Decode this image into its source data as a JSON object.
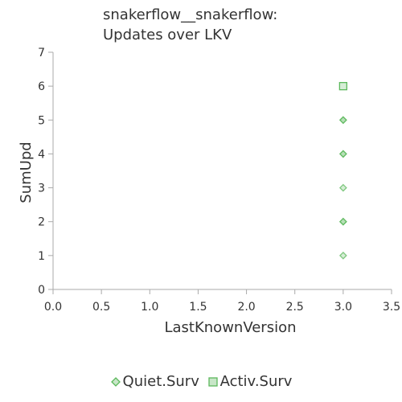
{
  "chart_data": {
    "type": "scatter",
    "title_lines": [
      "snakerflow__snakerflow:",
      "Updates over LKV"
    ],
    "xlabel": "LastKnownVersion",
    "ylabel": "SumUpd",
    "xlim": [
      0,
      3.5
    ],
    "ylim": [
      0,
      7
    ],
    "x_ticks": [
      "0.0",
      "0.5",
      "1.0",
      "1.5",
      "2.0",
      "2.5",
      "3.0",
      "3.5"
    ],
    "y_ticks": [
      "0",
      "1",
      "2",
      "3",
      "4",
      "5",
      "6",
      "7"
    ],
    "grid": false,
    "legend_position": "bottom",
    "series": [
      {
        "name": "Quiet.Surv",
        "marker": "diamond",
        "color": "#5cb85c",
        "points": [
          [
            3.0,
            1
          ],
          [
            3.0,
            2
          ],
          [
            3.0,
            2
          ],
          [
            3.0,
            3
          ],
          [
            3.0,
            4
          ],
          [
            3.0,
            4
          ],
          [
            3.0,
            5
          ],
          [
            3.0,
            5
          ]
        ]
      },
      {
        "name": "Activ.Surv",
        "marker": "square",
        "color": "#5cb85c",
        "points": [
          [
            3.0,
            6
          ]
        ]
      }
    ]
  }
}
